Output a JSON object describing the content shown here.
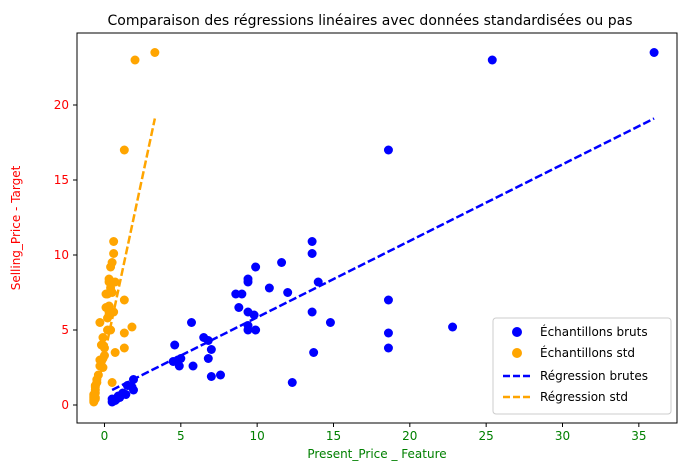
{
  "chart_data": {
    "type": "scatter",
    "title": "Comparaison des régressions linéaires avec données standardisées ou pas",
    "xlabel": "Present_Price _ Feature",
    "ylabel": "Selling_Price - Target",
    "xlim": [
      -1.8,
      37.5
    ],
    "ylim": [
      -1.2,
      24.8
    ],
    "x_ticks": [
      0,
      5,
      10,
      15,
      20,
      25,
      30,
      35
    ],
    "y_ticks": [
      0,
      5,
      10,
      15,
      20
    ],
    "grid": false,
    "legend_position": "bottom-right",
    "colors": {
      "raw": "#0000ff",
      "std": "#ffa500",
      "xlabel": "#008000",
      "ylabel": "#ff0000",
      "x_ticks": "#008000",
      "y_ticks": "#ff0000"
    },
    "series": [
      {
        "name": "Échantillons bruts",
        "kind": "scatter",
        "color": "#0000ff",
        "points": [
          [
            36.0,
            23.5
          ],
          [
            25.4,
            23.0
          ],
          [
            18.6,
            17.0
          ],
          [
            13.6,
            10.9
          ],
          [
            13.6,
            10.1
          ],
          [
            9.9,
            9.2
          ],
          [
            11.6,
            9.5
          ],
          [
            9.4,
            8.4
          ],
          [
            9.4,
            8.2
          ],
          [
            14.0,
            8.2
          ],
          [
            10.8,
            7.8
          ],
          [
            8.6,
            7.4
          ],
          [
            9.0,
            7.4
          ],
          [
            12.0,
            7.5
          ],
          [
            8.8,
            6.5
          ],
          [
            13.6,
            6.2
          ],
          [
            9.4,
            6.2
          ],
          [
            9.8,
            6.0
          ],
          [
            6.5,
            4.5
          ],
          [
            5.7,
            5.5
          ],
          [
            14.8,
            5.5
          ],
          [
            9.4,
            5.3
          ],
          [
            18.6,
            7.0
          ],
          [
            22.8,
            5.2
          ],
          [
            9.4,
            5.0
          ],
          [
            9.9,
            5.0
          ],
          [
            18.6,
            4.8
          ],
          [
            6.8,
            4.3
          ],
          [
            7.0,
            3.7
          ],
          [
            4.6,
            4.0
          ],
          [
            6.8,
            3.1
          ],
          [
            13.7,
            3.5
          ],
          [
            18.6,
            3.8
          ],
          [
            5.0,
            3.1
          ],
          [
            4.8,
            3.0
          ],
          [
            4.5,
            2.9
          ],
          [
            4.9,
            2.6
          ],
          [
            5.8,
            2.6
          ],
          [
            7.0,
            1.9
          ],
          [
            7.6,
            2.0
          ],
          [
            12.3,
            1.5
          ],
          [
            1.9,
            1.7
          ],
          [
            1.8,
            1.2
          ],
          [
            1.5,
            1.3
          ],
          [
            1.9,
            1.0
          ],
          [
            1.2,
            0.8
          ],
          [
            1.4,
            0.7
          ],
          [
            0.9,
            0.6
          ],
          [
            1.0,
            0.5
          ],
          [
            0.5,
            0.4
          ],
          [
            0.6,
            0.3
          ],
          [
            0.8,
            0.4
          ],
          [
            0.5,
            0.2
          ],
          [
            0.7,
            0.3
          ],
          [
            0.9,
            0.5
          ]
        ]
      },
      {
        "name": "Échantillons std",
        "kind": "scatter",
        "color": "#ffa500",
        "points": [
          [
            3.3,
            23.5
          ],
          [
            2.0,
            23.0
          ],
          [
            1.3,
            17.0
          ],
          [
            0.6,
            10.9
          ],
          [
            0.6,
            10.1
          ],
          [
            0.4,
            9.2
          ],
          [
            0.5,
            9.5
          ],
          [
            0.3,
            8.4
          ],
          [
            0.3,
            8.2
          ],
          [
            0.7,
            8.2
          ],
          [
            0.4,
            7.8
          ],
          [
            0.1,
            7.4
          ],
          [
            0.2,
            7.4
          ],
          [
            0.5,
            7.5
          ],
          [
            0.1,
            6.5
          ],
          [
            0.6,
            6.2
          ],
          [
            0.3,
            6.2
          ],
          [
            0.3,
            6.0
          ],
          [
            -0.3,
            5.5
          ],
          [
            0.2,
            5.0
          ],
          [
            0.4,
            5.0
          ],
          [
            1.3,
            7.0
          ],
          [
            1.8,
            5.2
          ],
          [
            0.7,
            3.5
          ],
          [
            1.3,
            4.8
          ],
          [
            1.3,
            3.8
          ],
          [
            -0.2,
            4.0
          ],
          [
            -0.1,
            4.5
          ],
          [
            0.0,
            3.8
          ],
          [
            -0.2,
            3.0
          ],
          [
            -0.3,
            3.0
          ],
          [
            -0.3,
            2.6
          ],
          [
            -0.2,
            2.9
          ],
          [
            -0.1,
            3.1
          ],
          [
            -0.1,
            2.5
          ],
          [
            0.5,
            1.5
          ],
          [
            -0.4,
            2.0
          ],
          [
            -0.5,
            1.7
          ],
          [
            -0.6,
            1.2
          ],
          [
            -0.6,
            1.3
          ],
          [
            -0.6,
            1.0
          ],
          [
            -0.6,
            0.8
          ],
          [
            -0.7,
            0.7
          ],
          [
            -0.7,
            0.6
          ],
          [
            -0.7,
            0.5
          ],
          [
            -0.7,
            0.4
          ],
          [
            -0.7,
            0.3
          ],
          [
            -0.7,
            0.2
          ],
          [
            -0.6,
            0.4
          ],
          [
            -0.6,
            0.5
          ],
          [
            -0.5,
            1.5
          ],
          [
            0.0,
            3.3
          ],
          [
            -0.1,
            4.0
          ],
          [
            0.2,
            5.8
          ],
          [
            0.3,
            6.6
          ]
        ]
      },
      {
        "name": "Régression brutes",
        "kind": "line",
        "color": "#0000ff",
        "style": "dashed",
        "points": [
          [
            0.5,
            1.0
          ],
          [
            36.0,
            19.1
          ]
        ]
      },
      {
        "name": "Régression std",
        "kind": "line",
        "color": "#ffa500",
        "style": "dashed",
        "points": [
          [
            -0.7,
            0.0
          ],
          [
            3.3,
            19.1
          ]
        ]
      }
    ]
  }
}
